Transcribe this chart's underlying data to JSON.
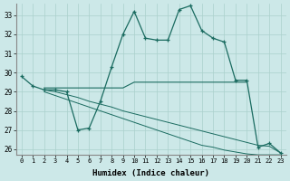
{
  "xlabel": "Humidex (Indice chaleur)",
  "bg_color": "#cce8e8",
  "line_color": "#1a6b60",
  "grid_color": "#aad0cc",
  "xlim": [
    -0.5,
    23.5
  ],
  "ylim": [
    25.7,
    33.6
  ],
  "yticks": [
    26,
    27,
    28,
    29,
    30,
    31,
    32,
    33
  ],
  "xticks": [
    0,
    1,
    2,
    3,
    4,
    5,
    6,
    7,
    8,
    9,
    10,
    11,
    12,
    13,
    14,
    15,
    16,
    17,
    18,
    19,
    20,
    21,
    22,
    23
  ],
  "curve_x": [
    0,
    1,
    2,
    3,
    4,
    5,
    6,
    7,
    8,
    9,
    10,
    11,
    12,
    13,
    14,
    15,
    16,
    17,
    18,
    19,
    20,
    21,
    22,
    23
  ],
  "curve_y": [
    29.8,
    29.3,
    29.1,
    29.1,
    29.0,
    27.0,
    27.1,
    28.5,
    30.3,
    32.0,
    33.2,
    31.8,
    31.7,
    31.7,
    33.3,
    33.5,
    32.2,
    31.8,
    31.6,
    29.6,
    29.6,
    26.1,
    26.3,
    25.8
  ],
  "flat_x": [
    2,
    3,
    4,
    5,
    6,
    7,
    8,
    9,
    10,
    11,
    12,
    13,
    14,
    15,
    16,
    17,
    18,
    19,
    20
  ],
  "flat_y": [
    29.2,
    29.2,
    29.2,
    29.2,
    29.2,
    29.2,
    29.2,
    29.2,
    29.5,
    29.5,
    29.5,
    29.5,
    29.5,
    29.5,
    29.5,
    29.5,
    29.5,
    29.5,
    29.5
  ],
  "decline1_x": [
    2,
    3,
    4,
    5,
    6,
    7,
    8,
    9,
    10,
    11,
    12,
    13,
    14,
    15,
    16,
    17,
    18,
    19,
    20,
    21,
    22,
    23
  ],
  "decline1_y": [
    29.1,
    29.0,
    28.85,
    28.7,
    28.5,
    28.35,
    28.2,
    28.0,
    27.85,
    27.7,
    27.55,
    27.4,
    27.25,
    27.1,
    26.95,
    26.8,
    26.65,
    26.5,
    26.35,
    26.2,
    26.15,
    25.8
  ],
  "decline2_x": [
    2,
    3,
    4,
    5,
    6,
    7,
    8,
    9,
    10,
    11,
    12,
    13,
    14,
    15,
    16,
    17,
    18,
    19,
    20,
    21,
    22,
    23
  ],
  "decline2_y": [
    29.0,
    28.8,
    28.6,
    28.4,
    28.2,
    28.0,
    27.8,
    27.6,
    27.4,
    27.2,
    27.0,
    26.8,
    26.6,
    26.4,
    26.2,
    26.1,
    25.95,
    25.85,
    25.75,
    25.7,
    25.7,
    25.7
  ]
}
